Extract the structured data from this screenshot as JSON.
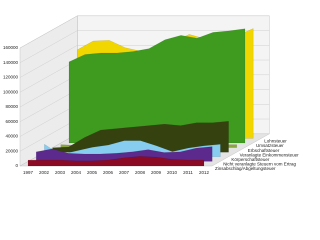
{
  "chart_data": {
    "type": "area3d",
    "categories": [
      "1997",
      "2002",
      "2003",
      "2004",
      "2005",
      "2006",
      "2007",
      "2008",
      "2009",
      "2010",
      "2011",
      "2012"
    ],
    "series": [
      {
        "name": "Lohnsteuer",
        "color": "#f2d600",
        "values": [
          120000,
          132000,
          133000,
          123000,
          118000,
          122000,
          131000,
          141000,
          135000,
          127000,
          139000,
          149000
        ]
      },
      {
        "name": "Umsatzsteuer",
        "color": "#3f9b1f",
        "values": [
          110000,
          120000,
          122000,
          122000,
          124000,
          128000,
          140000,
          146000,
          142000,
          150000,
          152000,
          155000
        ]
      },
      {
        "name": "Erbschaftsteuer",
        "color": "#8aa83a",
        "values": [
          4000,
          3000,
          3000,
          4000,
          4000,
          4000,
          4000,
          4000,
          5000,
          4000,
          4000,
          4000
        ]
      },
      {
        "name": "Veranlagte Einkommensteuer",
        "color": "#35420f",
        "values": [
          6000,
          7000,
          20000,
          30000,
          32000,
          34000,
          36000,
          38000,
          36000,
          40000,
          40000,
          42000
        ]
      },
      {
        "name": "Körperschaftsteuer",
        "color": "#86cdf0",
        "values": [
          17000,
          3000,
          8000,
          13000,
          16000,
          22000,
          22000,
          15000,
          7000,
          12000,
          15000,
          17000
        ]
      },
      {
        "name": "Nicht veranlagte Steuern vom Ertrag",
        "color": "#5b2a8c",
        "values": [
          13000,
          17000,
          11000,
          10000,
          10000,
          11000,
          13000,
          16000,
          12000,
          13000,
          18000,
          20000
        ]
      },
      {
        "name": "Zinsabschlag/Abgeltungsteuer",
        "color": "#8c0a24",
        "values": [
          8000,
          8000,
          8000,
          7000,
          7000,
          8000,
          11000,
          13000,
          12000,
          9000,
          8000,
          8000
        ]
      }
    ],
    "ylim": [
      0,
      160000
    ],
    "yticks": [
      0,
      20000,
      40000,
      60000,
      80000,
      100000,
      120000,
      140000,
      160000
    ],
    "grid": true
  }
}
